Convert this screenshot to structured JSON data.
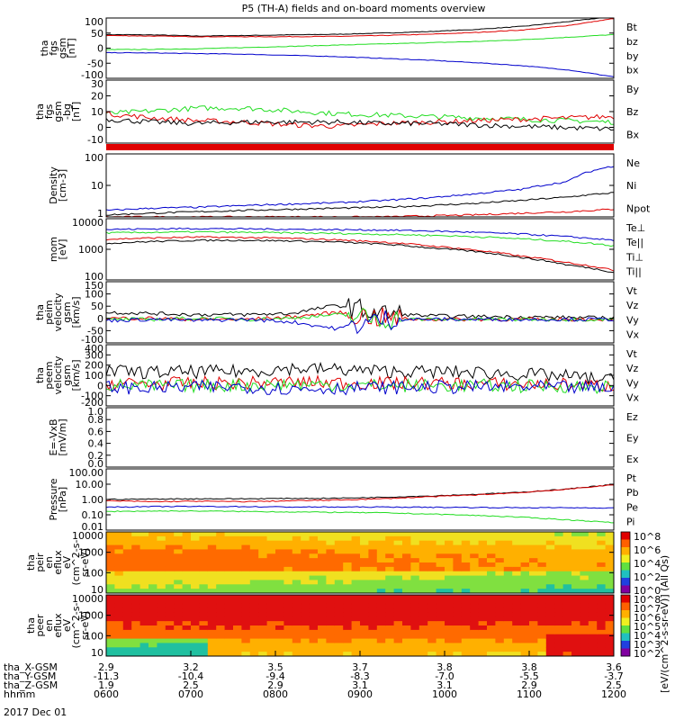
{
  "title": "P5 (TH-A) fields and on-board moments overview",
  "colors": {
    "black": "#000000",
    "red": "#e00000",
    "green": "#22dd22",
    "blue": "#0000cc"
  },
  "chart_data": [
    {
      "type": "line",
      "id": "fgs1",
      "ylabel": [
        "tha",
        "fgs",
        "gsm",
        "[nT]"
      ],
      "yticks": [
        "100",
        "50",
        "0",
        "-50",
        "-100"
      ],
      "ylim": [
        -100,
        100
      ],
      "log": false,
      "series": [
        {
          "name": "Bt",
          "color": "black",
          "values": [
            45,
            44,
            40,
            42,
            44,
            46,
            50,
            55,
            62,
            72,
            88,
            105
          ]
        },
        {
          "name": "bz",
          "color": "red",
          "values": [
            42,
            40,
            38,
            38,
            38,
            39,
            42,
            46,
            52,
            60,
            75,
            98
          ]
        },
        {
          "name": "by",
          "color": "green",
          "values": [
            -5,
            -4,
            -2,
            2,
            6,
            10,
            14,
            18,
            22,
            28,
            36,
            45
          ]
        },
        {
          "name": "bx",
          "color": "blue",
          "values": [
            -15,
            -16,
            -18,
            -20,
            -24,
            -28,
            -34,
            -40,
            -48,
            -58,
            -72,
            -95
          ]
        }
      ]
    },
    {
      "type": "line",
      "id": "fgs2",
      "ylabel": [
        "tha",
        "fgs",
        "gsm",
        "-bg",
        "[nT]"
      ],
      "yticks": [
        "30",
        "20",
        "10",
        "0",
        "-10"
      ],
      "ylim": [
        -15,
        30
      ],
      "log": false,
      "series": [
        {
          "name": "By",
          "color": "green",
          "values": [
            6,
            8,
            10,
            10,
            8,
            6,
            5,
            4,
            3,
            2,
            1,
            0
          ]
        },
        {
          "name": "Bz",
          "color": "red",
          "values": [
            6,
            3,
            1,
            0,
            -2,
            -3,
            -1,
            0,
            1,
            2,
            3,
            4
          ]
        },
        {
          "name": "Bx",
          "color": "black",
          "values": [
            2,
            0,
            -1,
            0,
            0,
            0,
            -1,
            -1,
            -2,
            -3,
            -4,
            -5
          ]
        }
      ]
    },
    {
      "type": "line",
      "id": "dens",
      "ylabel": [
        "Density",
        "[cm-3]"
      ],
      "yticks": [
        "100",
        "10",
        "1"
      ],
      "ylim": [
        0.5,
        150
      ],
      "log": true,
      "series": [
        {
          "name": "Ne",
          "color": "red",
          "values": [
            0.5,
            0.5,
            0.5,
            0.5,
            0.5,
            0.5,
            0.5,
            0.55,
            0.6,
            0.7,
            0.8,
            1.0
          ]
        },
        {
          "name": "Ni",
          "color": "black",
          "values": [
            0.6,
            0.7,
            0.8,
            0.9,
            1.0,
            1.1,
            1.2,
            1.4,
            1.7,
            2.2,
            3,
            4.5
          ]
        },
        {
          "name": "Npot",
          "color": "blue",
          "values": [
            0.9,
            1.1,
            1.2,
            1.4,
            1.6,
            1.8,
            2.2,
            2.8,
            4,
            6,
            12,
            50
          ]
        }
      ]
    },
    {
      "type": "line",
      "id": "temp",
      "ylabel": [
        "mom",
        "[eV]"
      ],
      "yticks": [
        "10000",
        "1000",
        "100"
      ],
      "ylim": [
        50,
        15000
      ],
      "log": true,
      "series": [
        {
          "name": "Te⊥",
          "color": "red",
          "values": [
            2200,
            2500,
            2700,
            2600,
            2400,
            2100,
            1700,
            1200,
            800,
            450,
            250,
            120
          ]
        },
        {
          "name": "Te||",
          "color": "black",
          "values": [
            1500,
            1800,
            2000,
            2000,
            1900,
            1700,
            1400,
            1000,
            700,
            400,
            200,
            100
          ]
        },
        {
          "name": "Ti⊥",
          "color": "blue",
          "values": [
            5500,
            5800,
            6000,
            5800,
            5600,
            5400,
            5200,
            4800,
            4200,
            3600,
            2800,
            2000
          ]
        },
        {
          "name": "Ti||",
          "color": "green",
          "values": [
            4000,
            4200,
            4400,
            4200,
            4000,
            3800,
            3500,
            3200,
            2800,
            2300,
            1800,
            1200
          ]
        }
      ]
    },
    {
      "type": "line",
      "id": "peim",
      "ylabel": [
        "tha",
        "peim",
        "velocity",
        "gsm",
        "[km/s]"
      ],
      "yticks": [
        "150",
        "100",
        "50",
        "0",
        "-50",
        "-100"
      ],
      "ylim": [
        -100,
        160
      ],
      "log": false,
      "series": [
        {
          "name": "Vt",
          "color": "black",
          "values": [
            30,
            25,
            20,
            20,
            25,
            60,
            25,
            15,
            12,
            10,
            8,
            6
          ]
        },
        {
          "name": "Vz",
          "color": "red",
          "values": [
            5,
            5,
            0,
            0,
            10,
            30,
            5,
            0,
            0,
            0,
            0,
            0
          ]
        },
        {
          "name": "Vy",
          "color": "green",
          "values": [
            0,
            0,
            5,
            0,
            5,
            20,
            0,
            0,
            0,
            0,
            0,
            0
          ]
        },
        {
          "name": "Vx",
          "color": "blue",
          "values": [
            -5,
            0,
            -5,
            0,
            -10,
            -40,
            0,
            0,
            0,
            0,
            0,
            0
          ]
        }
      ]
    },
    {
      "type": "line",
      "id": "peem",
      "ylabel": [
        "tha",
        "peem",
        "velocity",
        "gsm",
        "[km/s]"
      ],
      "yticks": [
        "400",
        "300",
        "200",
        "100",
        "0",
        "-100",
        "-200"
      ],
      "ylim": [
        -200,
        420
      ],
      "log": false,
      "series": [
        {
          "name": "Vt",
          "color": "black",
          "values": [
            150,
            140,
            145,
            150,
            180,
            170,
            150,
            145,
            140,
            120,
            100,
            60
          ]
        },
        {
          "name": "Vz",
          "color": "red",
          "values": [
            30,
            25,
            30,
            30,
            40,
            35,
            30,
            30,
            25,
            20,
            15,
            0
          ]
        },
        {
          "name": "Vy",
          "color": "green",
          "values": [
            10,
            0,
            5,
            10,
            20,
            10,
            5,
            5,
            5,
            0,
            0,
            -10
          ]
        },
        {
          "name": "Vx",
          "color": "blue",
          "values": [
            -10,
            -20,
            -10,
            -5,
            -30,
            -20,
            -15,
            -10,
            -10,
            -10,
            -15,
            -20
          ]
        }
      ]
    },
    {
      "type": "line",
      "id": "efield",
      "ylabel": [
        "E=-VxB",
        "[mV/m]"
      ],
      "yticks": [
        "1.0",
        "0.8",
        "0.6",
        "0.4",
        "0.2",
        "0.0"
      ],
      "ylim": [
        0,
        1
      ],
      "log": false,
      "series": [
        {
          "name": "Ez",
          "color": "red",
          "values": []
        },
        {
          "name": "Ey",
          "color": "green",
          "values": []
        },
        {
          "name": "Ex",
          "color": "blue",
          "values": []
        }
      ]
    },
    {
      "type": "line",
      "id": "press",
      "ylabel": [
        "Pressure",
        "[nPa]"
      ],
      "yticks": [
        "100.00",
        "10.00",
        "1.00",
        "0.10",
        "0.01"
      ],
      "ylim": [
        0.008,
        120
      ],
      "log": true,
      "series": [
        {
          "name": "Pt",
          "color": "black",
          "values": [
            1.0,
            1.05,
            1.1,
            1.1,
            1.15,
            1.2,
            1.4,
            1.7,
            2.2,
            3,
            5,
            10
          ]
        },
        {
          "name": "Pb",
          "color": "red",
          "values": [
            0.8,
            0.7,
            0.75,
            0.7,
            0.8,
            0.9,
            1.1,
            1.5,
            2,
            2.9,
            4.8,
            9.5
          ]
        },
        {
          "name": "Pe",
          "color": "green",
          "values": [
            0.15,
            0.16,
            0.16,
            0.15,
            0.14,
            0.13,
            0.12,
            0.1,
            0.08,
            0.06,
            0.04,
            0.025
          ]
        },
        {
          "name": "Pi",
          "color": "blue",
          "values": [
            0.3,
            0.32,
            0.33,
            0.32,
            0.3,
            0.3,
            0.3,
            0.29,
            0.28,
            0.27,
            0.27,
            0.26
          ]
        }
      ]
    },
    {
      "type": "heatmap",
      "id": "peir",
      "ylabel": [
        "tha",
        "peir",
        "en",
        "eflux",
        "eV",
        "(cm^2-s-",
        "sr-eV)"
      ],
      "yticks": [
        "10000",
        "1000",
        "100",
        "10"
      ],
      "cbar_ticks": [
        "10^8",
        "10^6",
        "10^4",
        "10^2",
        "10^0"
      ]
    },
    {
      "type": "heatmap",
      "id": "peer",
      "ylabel": [
        "tha",
        "peer",
        "en",
        "eflux",
        "eV",
        "(cm^2-s-",
        "sr-eV)"
      ],
      "yticks": [
        "10000",
        "1000",
        "100",
        "10"
      ],
      "cbar_ticks": [
        "10^8",
        "10^7",
        "10^6",
        "10^5",
        "10^4",
        "10^3",
        "10^2"
      ]
    }
  ],
  "cbar_label": "[eV/(cm^2-s-sr-eV)] (All Qs)",
  "xaxis": {
    "rows": [
      {
        "label": "tha_X-GSM",
        "values": [
          "2.9",
          "3.2",
          "3.5",
          "3.7",
          "3.8",
          "3.8",
          "3.6"
        ]
      },
      {
        "label": "tha_Y-GSM",
        "values": [
          "-11.3",
          "-10.4",
          "-9.4",
          "-8.3",
          "-7.0",
          "-5.5",
          "-3.7"
        ]
      },
      {
        "label": "tha_Z-GSM",
        "values": [
          "1.9",
          "2.5",
          "2.9",
          "3.1",
          "3.1",
          "2.9",
          "2.5"
        ]
      },
      {
        "label": "hhmm",
        "values": [
          "0600",
          "0700",
          "0800",
          "0900",
          "1000",
          "1100",
          "1200"
        ]
      }
    ],
    "date": "2017 Dec 01"
  }
}
